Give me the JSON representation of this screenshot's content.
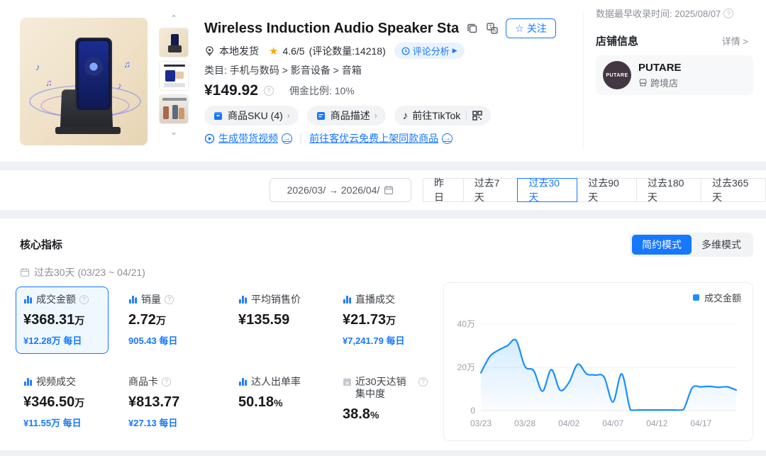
{
  "product": {
    "title": "Wireless Induction Audio Speaker Sta",
    "follow_label": "关注",
    "shipping": "本地发货",
    "rating": "4.6/5",
    "rating_count": "(评论数量:14218)",
    "review_analysis": "评论分析",
    "category": "类目: 手机与数码 > 影音设备 > 音箱",
    "price": "¥149.92",
    "commission": "佣金比例: 10%",
    "sku_button": "商品SKU (4)",
    "desc_button": "商品描述",
    "tiktok_button": "前往TikTok",
    "video_link": "生成带货视频",
    "upload_link": "前往客优云免费上架同款商品"
  },
  "store": {
    "recorded_time": "数据最早收录时间: 2025/08/07",
    "panel_title": "店铺信息",
    "detail_link": "详情 >",
    "name": "PUTARE",
    "logo_text": "PUTARE",
    "type": "跨境店"
  },
  "filters": {
    "date_range": "2026/03/ → 2026/04/",
    "buttons": [
      "昨日",
      "过去7天",
      "过去30天",
      "过去90天",
      "过去180天",
      "过去365天"
    ],
    "selected": "过去30天"
  },
  "metrics": {
    "section_title": "核心指标",
    "period": "过去30天 (03/23 ~ 04/21)",
    "mode_simple": "简约模式",
    "mode_multi": "多维模式",
    "items": [
      {
        "label": "成交金额",
        "value": "¥368.31",
        "suffix": "万",
        "sub": "¥12.28万 每日"
      },
      {
        "label": "销量",
        "value": "2.72",
        "suffix": "万",
        "sub": "905.43 每日"
      },
      {
        "label": "平均销售价",
        "value": "¥135.59",
        "suffix": "",
        "sub": ""
      },
      {
        "label": "直播成交",
        "value": "¥21.73",
        "suffix": "万",
        "sub": "¥7,241.79 每日"
      },
      {
        "label": "视频成交",
        "value": "¥346.50",
        "suffix": "万",
        "sub": "¥11.55万 每日"
      },
      {
        "label": "商品卡",
        "value": "¥813.77",
        "suffix": "",
        "sub": "¥27.13 每日"
      },
      {
        "label": "达人出单率",
        "value": "50.18",
        "suffix": "%",
        "sub": ""
      },
      {
        "label": "近30天达销集中度",
        "value": "38.8",
        "suffix": "%",
        "sub": ""
      }
    ]
  },
  "chart_data": {
    "type": "area",
    "title": "",
    "series_name": "成交金额",
    "x": [
      "03/23",
      "03/24",
      "03/25",
      "03/26",
      "03/27",
      "03/28",
      "03/29",
      "03/30",
      "03/31",
      "04/01",
      "04/02",
      "04/03",
      "04/04",
      "04/05",
      "04/06",
      "04/07",
      "04/08",
      "04/09",
      "04/10",
      "04/11",
      "04/12",
      "04/13",
      "04/14",
      "04/15",
      "04/16",
      "04/17",
      "04/18",
      "04/19",
      "04/20",
      "04/21"
    ],
    "values": [
      17.5,
      25,
      28,
      30,
      32.5,
      20.5,
      18.5,
      9,
      19,
      9.5,
      13,
      21.5,
      17,
      16.5,
      15.5,
      4,
      17,
      0.3,
      0.3,
      0.3,
      0.3,
      0.3,
      0.3,
      0.5,
      10.5,
      11,
      11.2,
      10.8,
      11,
      9.5
    ],
    "unit": "万",
    "y_ticks": [
      0,
      20,
      40
    ],
    "y_tick_labels": [
      "0",
      "20万",
      "40万"
    ],
    "x_tick_indices": [
      0,
      5,
      10,
      15,
      20,
      25
    ],
    "x_tick_labels": [
      "03/23",
      "03/28",
      "04/02",
      "04/07",
      "04/12",
      "04/17"
    ],
    "ylim": [
      0,
      44
    ],
    "grid": true,
    "legend_position": "top-right",
    "line_color": "#1890ff"
  }
}
